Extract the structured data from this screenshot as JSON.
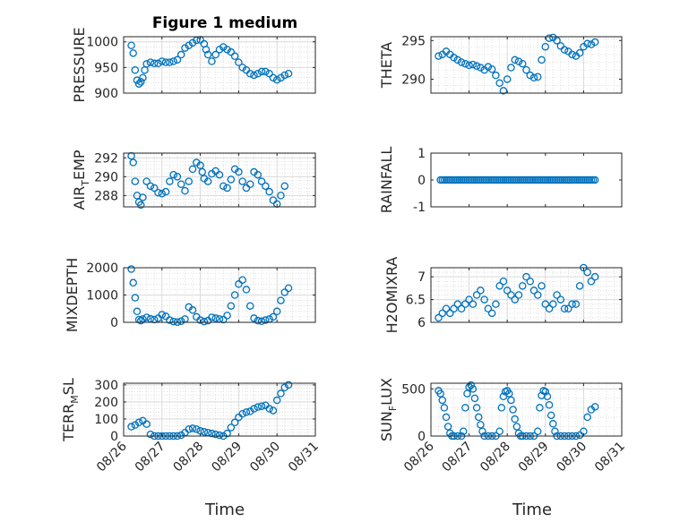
{
  "figure": {
    "title": "Figure 1 medium",
    "xlabel": "Time",
    "xticks": [
      "08/26",
      "08/27",
      "08/28",
      "08/29",
      "08/30",
      "08/31"
    ]
  },
  "colors": {
    "marker": "#0072BD",
    "axis": "#262626",
    "grid": "#d9d9d9"
  },
  "chart_data": [
    {
      "type": "scatter",
      "name": "pressure",
      "ylabel_main": "PRESSURE",
      "ylabel_sub": "",
      "ylabel_tail": "",
      "x": [
        0.2,
        0.25,
        0.3,
        0.35,
        0.4,
        0.45,
        0.5,
        0.55,
        0.6,
        0.7,
        0.8,
        0.9,
        1.0,
        1.1,
        1.2,
        1.3,
        1.4,
        1.5,
        1.6,
        1.7,
        1.8,
        1.9,
        2.0,
        2.1,
        2.15,
        2.2,
        2.3,
        2.4,
        2.5,
        2.6,
        2.7,
        2.8,
        2.9,
        3.0,
        3.1,
        3.2,
        3.3,
        3.4,
        3.5,
        3.6,
        3.7,
        3.8,
        3.9,
        4.0,
        4.1,
        4.2,
        4.3
      ],
      "y": [
        993,
        978,
        945,
        925,
        918,
        922,
        930,
        945,
        957,
        960,
        958,
        958,
        962,
        960,
        960,
        962,
        965,
        975,
        988,
        993,
        998,
        1003,
        1004,
        996,
        985,
        975,
        962,
        975,
        985,
        990,
        985,
        980,
        972,
        960,
        950,
        945,
        938,
        935,
        938,
        942,
        942,
        938,
        930,
        926,
        930,
        935,
        938
      ],
      "ylim": [
        900,
        1010
      ],
      "yticks": [
        900,
        950,
        1000
      ],
      "grid": true
    },
    {
      "type": "scatter",
      "name": "theta",
      "ylabel_main": "THETA",
      "ylabel_sub": "",
      "ylabel_tail": "",
      "x": [
        0.2,
        0.3,
        0.4,
        0.5,
        0.6,
        0.7,
        0.8,
        0.9,
        1.0,
        1.1,
        1.2,
        1.3,
        1.4,
        1.5,
        1.6,
        1.7,
        1.8,
        1.9,
        2.0,
        2.1,
        2.2,
        2.3,
        2.4,
        2.5,
        2.6,
        2.7,
        2.8,
        2.9,
        3.0,
        3.1,
        3.2,
        3.3,
        3.4,
        3.5,
        3.6,
        3.7,
        3.8,
        3.9,
        4.0,
        4.1,
        4.2,
        4.3
      ],
      "y": [
        293,
        293.2,
        293.6,
        293.2,
        292.8,
        292.5,
        292.2,
        292.0,
        291.8,
        291.9,
        291.7,
        291.5,
        291.2,
        291.6,
        291.3,
        290.5,
        289.5,
        288.5,
        290,
        291.5,
        292.5,
        292.3,
        292.0,
        291.2,
        290.5,
        290.2,
        290.3,
        292.5,
        294.2,
        295.3,
        295.4,
        295.0,
        294.3,
        293.8,
        293.6,
        293.2,
        293.0,
        293.4,
        294.2,
        294.6,
        294.5,
        294.8
      ],
      "ylim": [
        288.2,
        295.5
      ],
      "yticks": [
        290,
        295
      ],
      "grid": true
    },
    {
      "type": "scatter",
      "name": "air-temp",
      "ylabel_main": "AIR",
      "ylabel_sub": "T",
      "ylabel_tail": "EMP",
      "x": [
        0.2,
        0.25,
        0.3,
        0.35,
        0.4,
        0.45,
        0.5,
        0.6,
        0.7,
        0.8,
        0.9,
        1.0,
        1.1,
        1.2,
        1.3,
        1.4,
        1.5,
        1.6,
        1.7,
        1.8,
        1.9,
        2.0,
        2.05,
        2.1,
        2.2,
        2.3,
        2.4,
        2.5,
        2.6,
        2.7,
        2.8,
        2.9,
        3.0,
        3.1,
        3.2,
        3.3,
        3.4,
        3.5,
        3.6,
        3.7,
        3.8,
        3.9,
        4.0,
        4.1,
        4.2
      ],
      "y": [
        292.2,
        291.5,
        289.5,
        288.0,
        287.3,
        287.0,
        287.8,
        289.5,
        289.0,
        288.8,
        288.3,
        288.2,
        288.4,
        289.5,
        290.2,
        290.0,
        289.2,
        288.5,
        289.5,
        290.8,
        291.5,
        291.2,
        290.5,
        289.8,
        289.5,
        290.3,
        290.6,
        290.2,
        289.0,
        288.8,
        289.7,
        290.8,
        290.5,
        289.5,
        288.8,
        289.2,
        290.5,
        290.2,
        289.5,
        289.0,
        288.4,
        287.5,
        287.1,
        288.0,
        289.0
      ],
      "ylim": [
        286.8,
        292.5
      ],
      "yticks": [
        288,
        290,
        292
      ],
      "grid": true
    },
    {
      "type": "scatter",
      "name": "rainfall",
      "ylabel_main": "RAINFALL",
      "ylabel_sub": "",
      "ylabel_tail": "",
      "x_range": [
        0.25,
        4.3
      ],
      "x_step": 0.05,
      "constant": 0,
      "ylim": [
        -1,
        1
      ],
      "yticks": [
        -1,
        0,
        1
      ],
      "grid": false
    },
    {
      "type": "scatter",
      "name": "mixdepth",
      "ylabel_main": "MIXDEPTH",
      "ylabel_sub": "",
      "ylabel_tail": "",
      "x": [
        0.2,
        0.25,
        0.3,
        0.35,
        0.4,
        0.45,
        0.5,
        0.6,
        0.7,
        0.8,
        0.9,
        1.0,
        1.1,
        1.2,
        1.3,
        1.4,
        1.5,
        1.6,
        1.7,
        1.8,
        1.9,
        2.0,
        2.1,
        2.2,
        2.3,
        2.4,
        2.5,
        2.6,
        2.7,
        2.8,
        2.9,
        3.0,
        3.1,
        3.2,
        3.3,
        3.4,
        3.5,
        3.6,
        3.7,
        3.8,
        3.9,
        4.0,
        4.1,
        4.2,
        4.3
      ],
      "y": [
        1950,
        1450,
        900,
        400,
        100,
        60,
        120,
        180,
        130,
        100,
        150,
        280,
        220,
        80,
        30,
        10,
        40,
        120,
        560,
        450,
        200,
        80,
        30,
        60,
        180,
        150,
        120,
        100,
        250,
        600,
        1000,
        1400,
        1550,
        1200,
        600,
        150,
        60,
        40,
        80,
        120,
        200,
        400,
        800,
        1100,
        1250
      ],
      "ylim": [
        0,
        2000
      ],
      "yticks": [
        0,
        1000,
        2000
      ],
      "grid": true
    },
    {
      "type": "scatter",
      "name": "h2omixra",
      "ylabel_main": "H2OMIXRA",
      "ylabel_sub": "",
      "ylabel_tail": "",
      "x": [
        0.2,
        0.3,
        0.4,
        0.5,
        0.6,
        0.7,
        0.8,
        0.9,
        1.0,
        1.1,
        1.2,
        1.3,
        1.4,
        1.5,
        1.6,
        1.7,
        1.8,
        1.9,
        2.0,
        2.1,
        2.2,
        2.3,
        2.4,
        2.5,
        2.6,
        2.7,
        2.8,
        2.9,
        3.0,
        3.1,
        3.2,
        3.3,
        3.4,
        3.5,
        3.6,
        3.7,
        3.8,
        3.9,
        4.0,
        4.1,
        4.2,
        4.3
      ],
      "y": [
        6.1,
        6.2,
        6.3,
        6.2,
        6.3,
        6.4,
        6.3,
        6.4,
        6.5,
        6.4,
        6.6,
        6.7,
        6.5,
        6.3,
        6.2,
        6.4,
        6.8,
        6.9,
        6.7,
        6.6,
        6.5,
        6.6,
        6.8,
        7.0,
        6.9,
        6.7,
        6.6,
        6.8,
        6.4,
        6.3,
        6.4,
        6.6,
        6.5,
        6.3,
        6.3,
        6.4,
        6.4,
        6.8,
        7.2,
        7.1,
        6.9,
        7.0
      ],
      "ylim": [
        6.0,
        7.2
      ],
      "yticks": [
        6,
        6.5,
        7
      ],
      "grid": true
    },
    {
      "type": "scatter",
      "name": "terrain",
      "ylabel_main": "TERR",
      "ylabel_sub": "M",
      "ylabel_tail": "SL",
      "x": [
        0.2,
        0.3,
        0.4,
        0.5,
        0.6,
        0.7,
        0.8,
        0.9,
        1.0,
        1.1,
        1.2,
        1.3,
        1.4,
        1.5,
        1.6,
        1.7,
        1.8,
        1.9,
        2.0,
        2.1,
        2.2,
        2.3,
        2.4,
        2.5,
        2.6,
        2.7,
        2.8,
        2.9,
        3.0,
        3.1,
        3.2,
        3.3,
        3.4,
        3.5,
        3.6,
        3.7,
        3.8,
        3.9,
        4.0,
        4.1,
        4.2,
        4.3
      ],
      "y": [
        55,
        65,
        80,
        90,
        70,
        10,
        0,
        0,
        0,
        0,
        0,
        0,
        0,
        5,
        20,
        40,
        45,
        40,
        30,
        25,
        20,
        15,
        10,
        5,
        0,
        15,
        50,
        80,
        110,
        130,
        140,
        145,
        160,
        170,
        175,
        180,
        160,
        150,
        210,
        250,
        285,
        300
      ],
      "ylim": [
        0,
        310
      ],
      "yticks": [
        0,
        100,
        200,
        300
      ],
      "grid": true
    },
    {
      "type": "scatter",
      "name": "sunflux",
      "ylabel_main": "SUN",
      "ylabel_sub": "F",
      "ylabel_tail": "LUX",
      "x": [
        0.2,
        0.25,
        0.3,
        0.35,
        0.4,
        0.45,
        0.5,
        0.55,
        0.6,
        0.7,
        0.8,
        0.85,
        0.9,
        0.95,
        1.0,
        1.05,
        1.1,
        1.15,
        1.2,
        1.25,
        1.3,
        1.35,
        1.4,
        1.5,
        1.6,
        1.7,
        1.8,
        1.85,
        1.9,
        1.95,
        2.0,
        2.05,
        2.1,
        2.15,
        2.2,
        2.25,
        2.3,
        2.35,
        2.4,
        2.5,
        2.6,
        2.7,
        2.8,
        2.85,
        2.9,
        2.95,
        3.0,
        3.05,
        3.1,
        3.15,
        3.2,
        3.25,
        3.3,
        3.4,
        3.5,
        3.6,
        3.7,
        3.8,
        3.9,
        4.0,
        4.1,
        4.2,
        4.3
      ],
      "y": [
        480,
        450,
        380,
        300,
        200,
        100,
        30,
        0,
        0,
        0,
        0,
        50,
        300,
        450,
        520,
        540,
        500,
        400,
        300,
        200,
        120,
        50,
        0,
        0,
        0,
        0,
        50,
        300,
        420,
        470,
        480,
        450,
        380,
        280,
        180,
        100,
        30,
        0,
        0,
        0,
        0,
        0,
        50,
        300,
        430,
        480,
        470,
        420,
        330,
        220,
        130,
        50,
        0,
        0,
        0,
        0,
        0,
        0,
        10,
        50,
        200,
        280,
        310
      ],
      "ylim": [
        0,
        560
      ],
      "yticks": [
        0,
        500
      ],
      "grid": true
    }
  ]
}
